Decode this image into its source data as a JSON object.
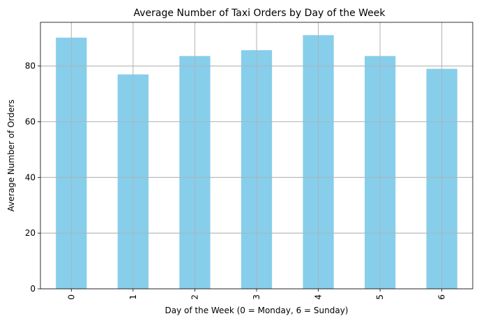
{
  "chart_data": {
    "type": "bar",
    "title": "Average Number of Taxi Orders by Day of the Week",
    "xlabel": "Day of the Week (0 = Monday, 6 = Sunday)",
    "ylabel": "Average Number of Orders",
    "categories": [
      "0",
      "1",
      "2",
      "3",
      "4",
      "5",
      "6"
    ],
    "values": [
      90.2,
      77.0,
      83.6,
      85.7,
      91.1,
      83.6,
      79.0
    ],
    "ylim": [
      0,
      95.7
    ],
    "yticks": [
      0,
      20,
      40,
      60,
      80
    ],
    "x_tick_rotation": "vertical",
    "grid": true,
    "legend": "none",
    "colors": {
      "bar": "#87ceeb",
      "grid": "#b0b0b0",
      "axis": "#000000"
    }
  }
}
